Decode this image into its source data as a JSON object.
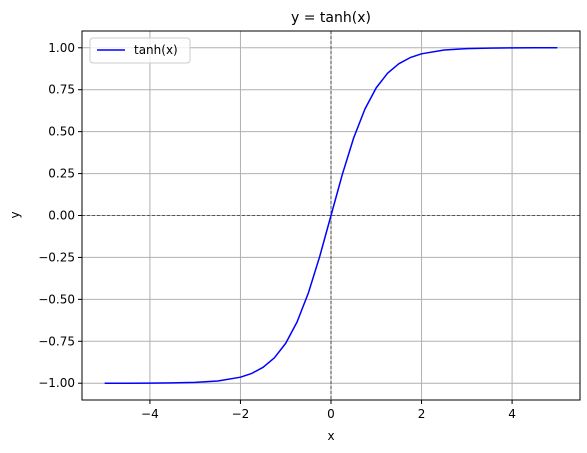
{
  "chart_data": {
    "type": "line",
    "title": "y = tanh(x)",
    "xlabel": "x",
    "ylabel": "y",
    "xlim": [
      -5.5,
      5.5
    ],
    "ylim": [
      -1.1,
      1.1
    ],
    "x_ticks": [
      -4,
      -2,
      0,
      2,
      4
    ],
    "x_tick_labels": [
      "−4",
      "−2",
      "0",
      "2",
      "4"
    ],
    "y_ticks": [
      -1.0,
      -0.75,
      -0.5,
      -0.25,
      0.0,
      0.25,
      0.5,
      0.75,
      1.0
    ],
    "y_tick_labels": [
      "−1.00",
      "−0.75",
      "−0.50",
      "−0.25",
      "0.00",
      "0.25",
      "0.50",
      "0.75",
      "1.00"
    ],
    "grid": true,
    "legend_position": "top-left",
    "reference_lines": {
      "horizontal_y": 0,
      "vertical_x": 0
    },
    "series": [
      {
        "name": "tanh(x)",
        "color": "#0000ff",
        "x": [
          -5.0,
          -4.5,
          -4.0,
          -3.5,
          -3.0,
          -2.5,
          -2.0,
          -1.75,
          -1.5,
          -1.25,
          -1.0,
          -0.75,
          -0.5,
          -0.25,
          0.0,
          0.25,
          0.5,
          0.75,
          1.0,
          1.25,
          1.5,
          1.75,
          2.0,
          2.5,
          3.0,
          3.5,
          4.0,
          4.5,
          5.0
        ],
        "y": [
          -0.9999,
          -0.9998,
          -0.9993,
          -0.9982,
          -0.9951,
          -0.9866,
          -0.964,
          -0.9414,
          -0.9051,
          -0.8483,
          -0.7616,
          -0.6351,
          -0.4621,
          -0.2449,
          0.0,
          0.2449,
          0.4621,
          0.6351,
          0.7616,
          0.8483,
          0.9051,
          0.9414,
          0.964,
          0.9866,
          0.9951,
          0.9982,
          0.9993,
          0.9998,
          0.9999
        ]
      }
    ]
  }
}
